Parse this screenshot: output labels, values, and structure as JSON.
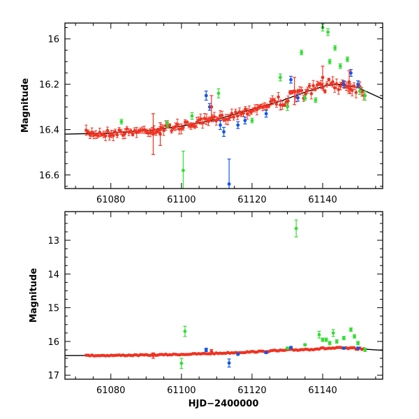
{
  "chart_data": [
    {
      "type": "scatter",
      "panel": "top",
      "xlabel": "",
      "ylabel": "Magnitude",
      "xlim": [
        61067,
        61157
      ],
      "ylim": [
        16.66,
        15.93
      ],
      "y_inverted": true,
      "xticks": [
        61080,
        61100,
        61120,
        61140
      ],
      "yticks": [
        16,
        16.2,
        16.4,
        16.6
      ],
      "yticklabels": [
        "16",
        "16.2",
        "16.4",
        "16.6"
      ],
      "colors": {
        "red": "#ee3322",
        "blue": "#1155ee",
        "green": "#33dd33",
        "fit": "#000000"
      },
      "fit_line": {
        "x": [
          61067,
          61080,
          61090,
          61100,
          61110,
          61120,
          61128,
          61135,
          61141,
          61145,
          61150,
          61157
        ],
        "y": [
          16.42,
          16.415,
          16.405,
          16.385,
          16.355,
          16.31,
          16.275,
          16.235,
          16.205,
          16.2,
          16.215,
          16.265
        ]
      },
      "series": [
        {
          "name": "green",
          "points": [
            {
              "x": 61083,
              "y": 16.365,
              "err": 0.01
            },
            {
              "x": 61096,
              "y": 16.375,
              "err": 0.015
            },
            {
              "x": 61100.5,
              "y": 16.58,
              "err": 0.085
            },
            {
              "x": 61103,
              "y": 16.34,
              "err": 0.015
            },
            {
              "x": 61110.5,
              "y": 16.24,
              "err": 0.02
            },
            {
              "x": 61128,
              "y": 16.17,
              "err": 0.015
            },
            {
              "x": 61130,
              "y": 16.3,
              "err": 0.015
            },
            {
              "x": 61134,
              "y": 16.06,
              "err": 0.01
            },
            {
              "x": 61138,
              "y": 16.27,
              "err": 0.01
            },
            {
              "x": 61140,
              "y": 15.95,
              "err": 0.015
            },
            {
              "x": 61141.5,
              "y": 15.97,
              "err": 0.015
            },
            {
              "x": 61142,
              "y": 16.1,
              "err": 0.01
            },
            {
              "x": 61143.5,
              "y": 16.04,
              "err": 0.01
            },
            {
              "x": 61145,
              "y": 16.12,
              "err": 0.01
            },
            {
              "x": 61147,
              "y": 16.09,
              "err": 0.01
            },
            {
              "x": 61150.5,
              "y": 16.23,
              "err": 0.015
            },
            {
              "x": 61152,
              "y": 16.25,
              "err": 0.02
            },
            {
              "x": 61120,
              "y": 16.36,
              "err": 0.01
            },
            {
              "x": 61135,
              "y": 16.26,
              "err": 0.01
            }
          ]
        },
        {
          "name": "blue",
          "points": [
            {
              "x": 61107,
              "y": 16.25,
              "err": 0.02
            },
            {
              "x": 61108,
              "y": 16.3,
              "err": 0.015
            },
            {
              "x": 61111,
              "y": 16.38,
              "err": 0.02
            },
            {
              "x": 61112,
              "y": 16.41,
              "err": 0.02
            },
            {
              "x": 61113.5,
              "y": 16.64,
              "err": 0.11
            },
            {
              "x": 61116,
              "y": 16.38,
              "err": 0.015
            },
            {
              "x": 61118,
              "y": 16.36,
              "err": 0.015
            },
            {
              "x": 61124,
              "y": 16.33,
              "err": 0.015
            },
            {
              "x": 61131,
              "y": 16.18,
              "err": 0.015
            },
            {
              "x": 61133,
              "y": 16.26,
              "err": 0.015
            },
            {
              "x": 61146,
              "y": 16.2,
              "err": 0.015
            },
            {
              "x": 61148,
              "y": 16.15,
              "err": 0.015
            },
            {
              "x": 61150,
              "y": 16.2,
              "err": 0.015
            }
          ]
        },
        {
          "name": "red_outliers",
          "points": [
            {
              "x": 61092,
              "y": 16.42,
              "err": 0.09
            },
            {
              "x": 61094,
              "y": 16.42,
              "err": 0.05
            },
            {
              "x": 61108.5,
              "y": 16.3,
              "err": 0.05
            },
            {
              "x": 61132,
              "y": 16.23,
              "err": 0.06
            },
            {
              "x": 61140,
              "y": 16.17,
              "err": 0.05
            },
            {
              "x": 61147.5,
              "y": 16.19,
              "err": 0.05
            }
          ]
        }
      ]
    },
    {
      "type": "scatter",
      "panel": "bottom",
      "xlabel": "HJD−2400000",
      "ylabel": "Magnitude",
      "xlim": [
        61067,
        61157
      ],
      "ylim": [
        17.12,
        12.15
      ],
      "y_inverted": true,
      "xticks": [
        61080,
        61100,
        61120,
        61140
      ],
      "yticks": [
        13,
        14,
        15,
        16,
        17
      ],
      "yticklabels": [
        "13",
        "14",
        "15",
        "16",
        "17"
      ],
      "colors": {
        "red": "#ee3322",
        "blue": "#1155ee",
        "green": "#33dd33",
        "fit": "#000000"
      },
      "fit_line": {
        "x": [
          61067,
          61080,
          61090,
          61100,
          61110,
          61120,
          61128,
          61135,
          61141,
          61145,
          61150,
          61157
        ],
        "y": [
          16.42,
          16.415,
          16.405,
          16.385,
          16.355,
          16.31,
          16.275,
          16.235,
          16.205,
          16.2,
          16.215,
          16.265
        ]
      },
      "series": [
        {
          "name": "green",
          "points": [
            {
              "x": 61100,
              "y": 16.65,
              "err": 0.15
            },
            {
              "x": 61101,
              "y": 15.7,
              "err": 0.15
            },
            {
              "x": 61132.5,
              "y": 12.65,
              "err": 0.25
            },
            {
              "x": 61135,
              "y": 16.1,
              "err": 0.03
            },
            {
              "x": 61139,
              "y": 15.8,
              "err": 0.1
            },
            {
              "x": 61140,
              "y": 15.95,
              "err": 0.05
            },
            {
              "x": 61141,
              "y": 15.95,
              "err": 0.05
            },
            {
              "x": 61142,
              "y": 16.05,
              "err": 0.05
            },
            {
              "x": 61143,
              "y": 15.75,
              "err": 0.1
            },
            {
              "x": 61144,
              "y": 16.0,
              "err": 0.05
            },
            {
              "x": 61146,
              "y": 15.9,
              "err": 0.05
            },
            {
              "x": 61148,
              "y": 15.65,
              "err": 0.05
            },
            {
              "x": 61149,
              "y": 15.85,
              "err": 0.05
            },
            {
              "x": 61150,
              "y": 16.05,
              "err": 0.05
            },
            {
              "x": 61152,
              "y": 16.25,
              "err": 0.05
            },
            {
              "x": 61130,
              "y": 16.2,
              "err": 0.03
            }
          ]
        },
        {
          "name": "blue",
          "points": [
            {
              "x": 61107,
              "y": 16.25,
              "err": 0.05
            },
            {
              "x": 61113.5,
              "y": 16.64,
              "err": 0.12
            },
            {
              "x": 61116,
              "y": 16.38,
              "err": 0.03
            },
            {
              "x": 61124,
              "y": 16.33,
              "err": 0.03
            },
            {
              "x": 61131,
              "y": 16.18,
              "err": 0.03
            },
            {
              "x": 61146,
              "y": 16.2,
              "err": 0.03
            },
            {
              "x": 61150,
              "y": 16.2,
              "err": 0.03
            }
          ]
        },
        {
          "name": "red_outliers",
          "points": [
            {
              "x": 61092,
              "y": 16.42,
              "err": 0.08
            },
            {
              "x": 61108.5,
              "y": 16.3,
              "err": 0.06
            }
          ]
        }
      ]
    }
  ]
}
